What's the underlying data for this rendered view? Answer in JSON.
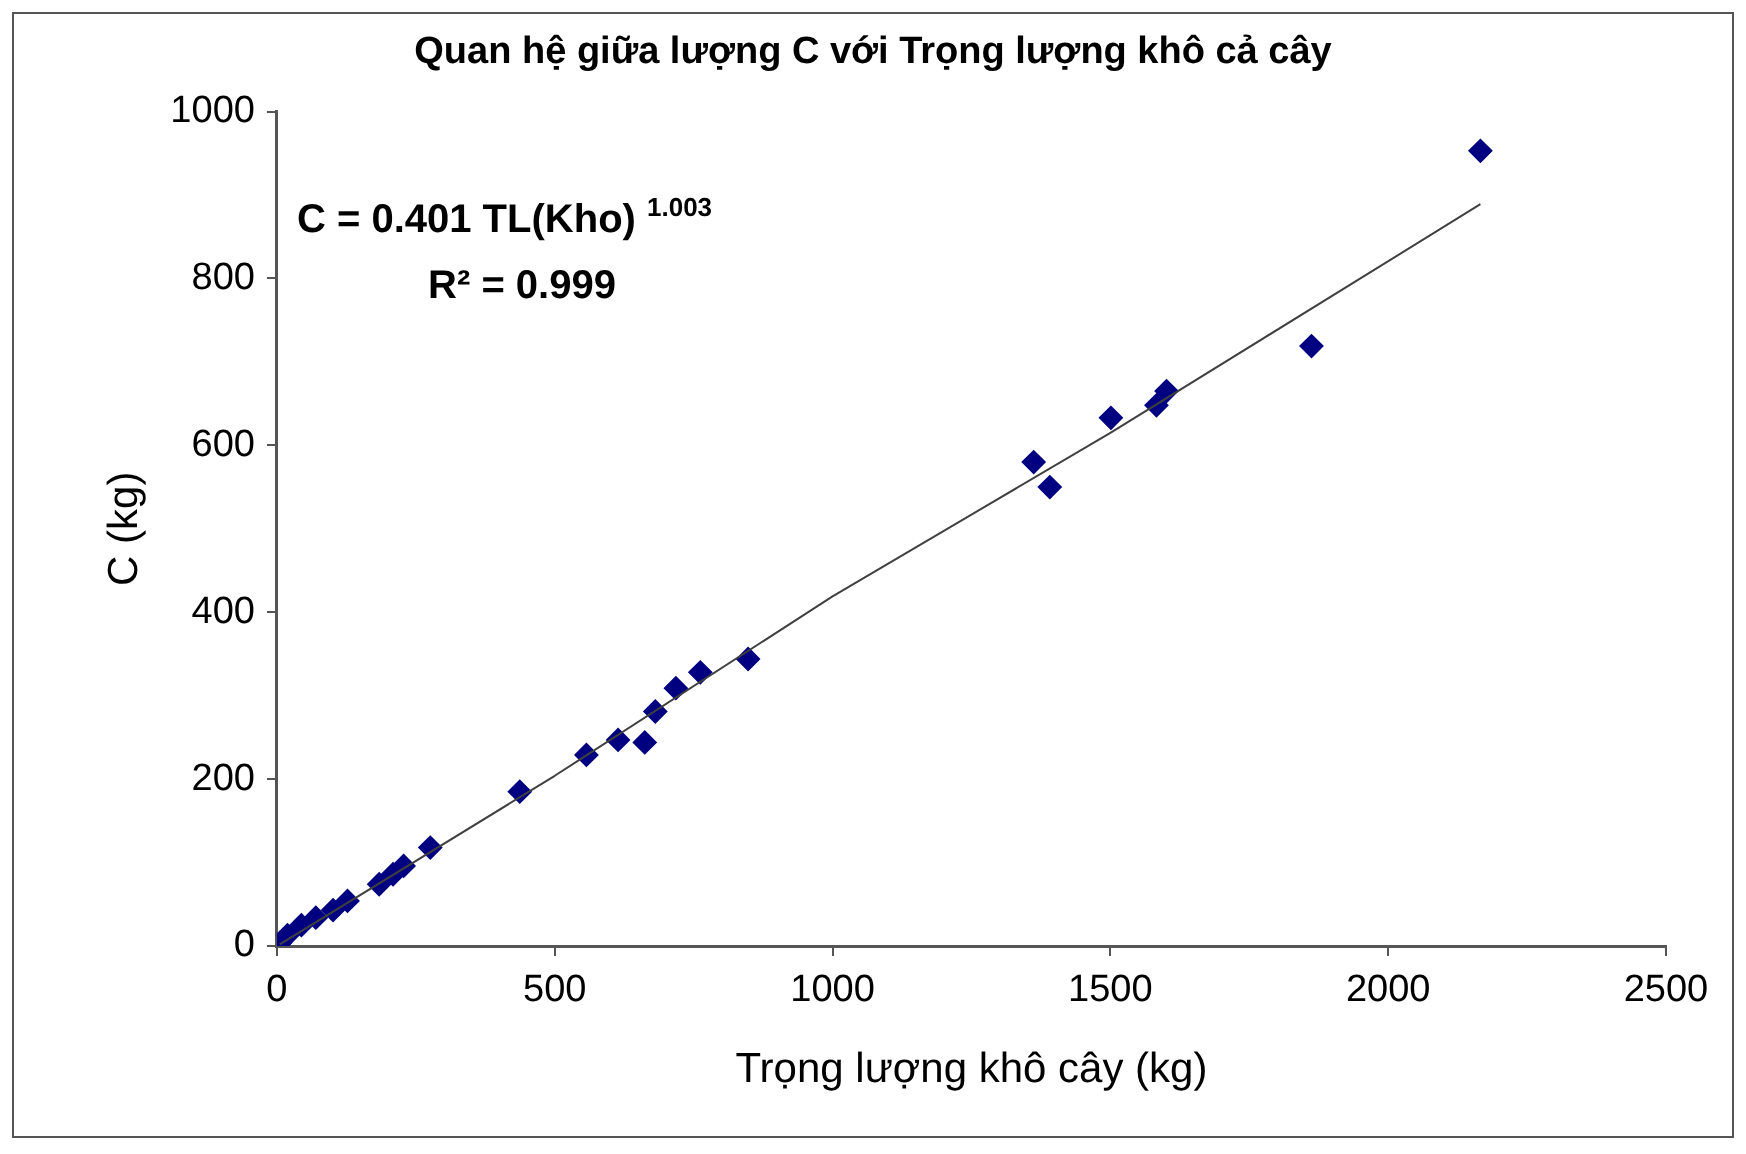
{
  "chart_data": {
    "type": "scatter",
    "title": "Quan hệ giữa lượng C với Trọng lượng khô cả cây",
    "xlabel": "Trọng lượng khô cây (kg)",
    "ylabel": "C (kg)",
    "xlim": [
      0,
      2500
    ],
    "xticks": [
      0,
      500,
      1000,
      1500,
      2000,
      2500
    ],
    "ylim": [
      0,
      1000
    ],
    "yticks": [
      0,
      200,
      400,
      600,
      800,
      1000
    ],
    "grid": false,
    "legend": false,
    "marker": "diamond",
    "annotations": [
      "C = 0.401 TL(Kho) $^{1.003}$",
      "R² = 0.999"
    ],
    "series": [
      {
        "color": "#000080",
        "x": [
          6,
          19,
          44,
          70,
          101,
          127,
          184,
          209,
          228,
          276,
          437,
          557,
          614,
          662,
          681,
          718,
          762,
          848,
          1362,
          1391,
          1501,
          1583,
          1601,
          1862,
          2166
        ],
        "values": [
          4,
          13,
          25,
          34,
          43,
          54,
          74,
          86,
          96,
          118,
          185,
          229,
          247,
          244,
          281,
          309,
          328,
          344,
          580,
          550,
          633,
          648,
          665,
          719,
          953
        ]
      },
      {
        "type": "line",
        "color": "#404040",
        "marker": "none",
        "x": [
          5,
          500,
          1000,
          1500,
          2166
        ],
        "values": [
          2,
          204,
          419,
          615,
          889
        ]
      }
    ]
  }
}
